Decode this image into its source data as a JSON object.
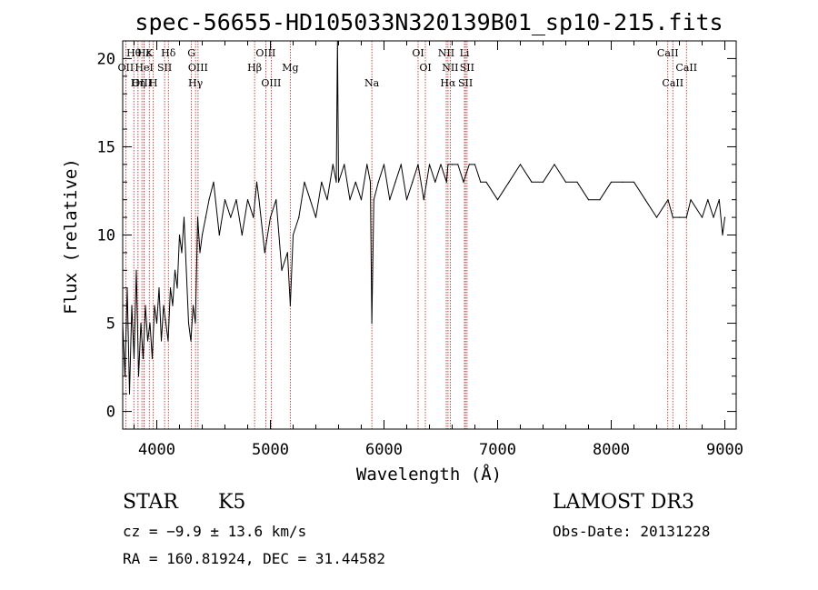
{
  "chart_data": {
    "type": "line",
    "title": "spec-56655-HD105033N320139B01_sp10-215.fits",
    "xlabel": "Wavelength (Å)",
    "ylabel": "Flux (relative)",
    "xlim": [
      3700,
      9100
    ],
    "ylim": [
      -1,
      21
    ],
    "x_ticks": [
      4000,
      5000,
      6000,
      7000,
      8000,
      9000
    ],
    "y_ticks": [
      0,
      5,
      10,
      15,
      20
    ],
    "series": [
      {
        "name": "flux",
        "x": [
          3700,
          3720,
          3740,
          3760,
          3780,
          3800,
          3820,
          3840,
          3860,
          3880,
          3900,
          3920,
          3940,
          3960,
          3980,
          4000,
          4020,
          4040,
          4060,
          4080,
          4100,
          4120,
          4140,
          4160,
          4180,
          4200,
          4220,
          4240,
          4260,
          4280,
          4300,
          4320,
          4340,
          4360,
          4380,
          4400,
          4430,
          4460,
          4500,
          4550,
          4600,
          4650,
          4700,
          4750,
          4800,
          4850,
          4880,
          4900,
          4950,
          5000,
          5050,
          5100,
          5150,
          5175,
          5200,
          5250,
          5300,
          5350,
          5400,
          5450,
          5500,
          5550,
          5580,
          5590,
          5600,
          5650,
          5700,
          5750,
          5800,
          5850,
          5880,
          5893,
          5910,
          5950,
          6000,
          6050,
          6100,
          6150,
          6200,
          6250,
          6300,
          6350,
          6400,
          6450,
          6500,
          6550,
          6563,
          6600,
          6650,
          6700,
          6750,
          6800,
          6850,
          6900,
          7000,
          7100,
          7200,
          7300,
          7400,
          7500,
          7600,
          7700,
          7800,
          7900,
          8000,
          8100,
          8200,
          8300,
          8400,
          8500,
          8542,
          8600,
          8662,
          8700,
          8800,
          8850,
          8900,
          8950,
          8980,
          9000
        ],
        "values": [
          5,
          2,
          7,
          1,
          6,
          3,
          8,
          2,
          5,
          3,
          6,
          4,
          5,
          3,
          6,
          5,
          7,
          4,
          6,
          5,
          4,
          7,
          6,
          8,
          7,
          10,
          9,
          11,
          8,
          5,
          4,
          6,
          5,
          11,
          9,
          10,
          11,
          12,
          13,
          10,
          12,
          11,
          12,
          10,
          12,
          11,
          13,
          12,
          9,
          11,
          12,
          8,
          9,
          6,
          10,
          11,
          13,
          12,
          11,
          13,
          12,
          14,
          13,
          21,
          13,
          14,
          12,
          13,
          12,
          14,
          13,
          5,
          12,
          13,
          14,
          12,
          13,
          14,
          12,
          13,
          14,
          12,
          14,
          13,
          14,
          13,
          14,
          14,
          14,
          13,
          14,
          14,
          13,
          13,
          12,
          13,
          14,
          13,
          13,
          14,
          13,
          13,
          12,
          12,
          13,
          13,
          13,
          12,
          11,
          12,
          11,
          11,
          11,
          12,
          11,
          12,
          11,
          12,
          10,
          11
        ]
      }
    ],
    "line_markers": [
      {
        "label": "Hθ",
        "wavelength": 3798
      },
      {
        "label": "OII",
        "wavelength": 3727
      },
      {
        "label": "OIII",
        "wavelength": 3869
      },
      {
        "label": "Hε",
        "wavelength": 3889
      },
      {
        "label": "HeI",
        "wavelength": 3889
      },
      {
        "label": "Hη",
        "wavelength": 3835
      },
      {
        "label": "K",
        "wavelength": 3934
      },
      {
        "label": "SII",
        "wavelength": 4069
      },
      {
        "label": "H",
        "wavelength": 3969
      },
      {
        "label": "Hδ",
        "wavelength": 4102
      },
      {
        "label": "OIII",
        "wavelength": 4363
      },
      {
        "label": "Hγ",
        "wavelength": 4341
      },
      {
        "label": "G",
        "wavelength": 4305
      },
      {
        "label": "Hβ",
        "wavelength": 4861
      },
      {
        "label": "OIII",
        "wavelength": 5007
      },
      {
        "label": "OIII",
        "wavelength": 4959
      },
      {
        "label": "Mg",
        "wavelength": 5175
      },
      {
        "label": "Na",
        "wavelength": 5893
      },
      {
        "label": "OI",
        "wavelength": 6300
      },
      {
        "label": "OI",
        "wavelength": 6364
      },
      {
        "label": "Hα",
        "wavelength": 6563
      },
      {
        "label": "NII",
        "wavelength": 6548
      },
      {
        "label": "NII",
        "wavelength": 6583
      },
      {
        "label": "SII",
        "wavelength": 6717
      },
      {
        "label": "Li",
        "wavelength": 6708
      },
      {
        "label": "SII",
        "wavelength": 6731
      },
      {
        "label": "CaII",
        "wavelength": 8542
      },
      {
        "label": "CaII",
        "wavelength": 8498
      },
      {
        "label": "CaII",
        "wavelength": 8662
      }
    ]
  },
  "info": {
    "object_class": "STAR",
    "subclass": "K5",
    "survey": "LAMOST DR3",
    "redshift_line": "cz = −9.9 ± 13.6 km/s",
    "obs_date": "Obs-Date: 20131228",
    "coords": "RA = 160.81924, DEC =  31.44582"
  },
  "colors": {
    "line": "#000000",
    "markers": "#b22222",
    "background": "#ffffff"
  }
}
